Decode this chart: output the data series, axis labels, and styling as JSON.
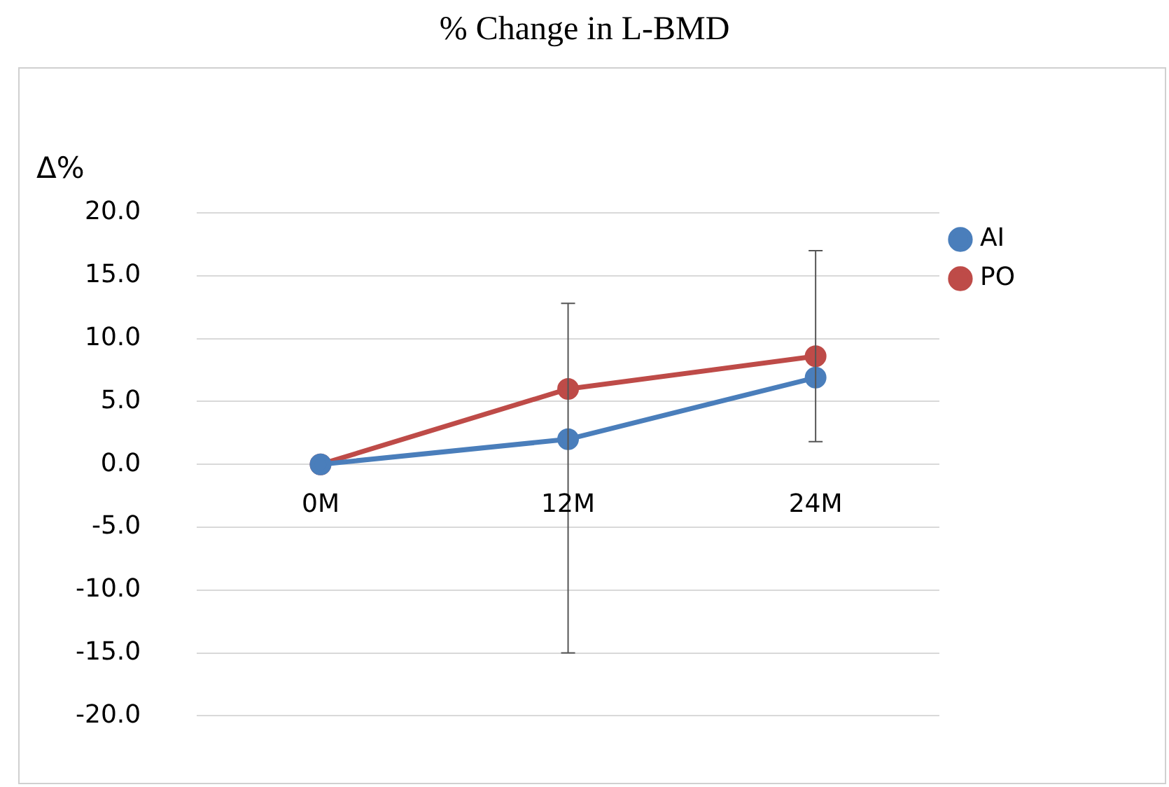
{
  "chart_data": {
    "type": "line",
    "title": "% Change  in L-BMD",
    "ylabel": "Δ%",
    "categories": [
      "0M",
      "12M",
      "24M"
    ],
    "series": [
      {
        "name": "AI",
        "color": "#4a7ebb",
        "values": [
          0,
          2.0,
          6.9
        ],
        "errors": [
          null,
          [
            -15.0,
            12.8
          ],
          [
            1.8,
            17.0
          ]
        ]
      },
      {
        "name": "PO",
        "color": "#be4b48",
        "values": [
          0,
          6.0,
          8.6
        ]
      }
    ],
    "ylim": [
      -20,
      20
    ],
    "yticks": [
      {
        "value": -20,
        "label": "-20.0"
      },
      {
        "value": -15,
        "label": "-15.0"
      },
      {
        "value": -10,
        "label": "-10.0"
      },
      {
        "value": -5,
        "label": "-5.0"
      },
      {
        "value": 0,
        "label": "0.0"
      },
      {
        "value": 5,
        "label": "5.0"
      },
      {
        "value": 10,
        "label": "10.0"
      },
      {
        "value": 15,
        "label": "15.0"
      },
      {
        "value": 20,
        "label": "20.0"
      }
    ],
    "grid": "y",
    "legend": "right",
    "marker": "circle",
    "line_style": "solid"
  }
}
